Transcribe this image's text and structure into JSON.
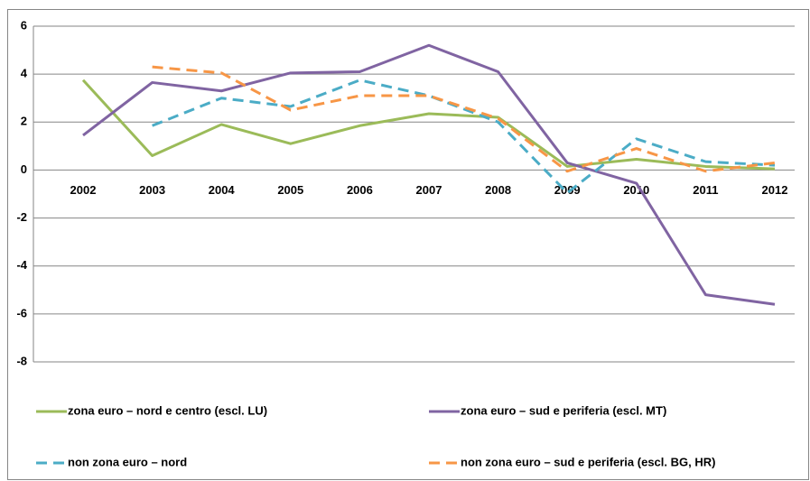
{
  "chart_data": {
    "type": "line",
    "categories": [
      "2002",
      "2003",
      "2004",
      "2005",
      "2006",
      "2007",
      "2008",
      "2009",
      "2010",
      "2011",
      "2012"
    ],
    "series": [
      {
        "name": "zona euro – nord e centro (escl. LU)",
        "color": "#9bbb59",
        "dashed": false,
        "values": [
          3.75,
          0.6,
          1.9,
          1.1,
          1.85,
          2.35,
          2.2,
          0.15,
          0.45,
          0.15,
          0.05
        ]
      },
      {
        "name": "zona euro – sud e periferia (escl. MT)",
        "color": "#8064a2",
        "dashed": false,
        "values": [
          1.45,
          3.65,
          3.3,
          4.05,
          4.1,
          5.2,
          4.1,
          0.3,
          -0.55,
          -5.2,
          -5.6
        ]
      },
      {
        "name": "non zona euro – nord",
        "color": "#4bacc6",
        "dashed": true,
        "values": [
          null,
          1.85,
          3.0,
          2.65,
          3.75,
          3.1,
          2.0,
          -0.95,
          1.3,
          0.35,
          0.2
        ]
      },
      {
        "name": "non zona euro – sud e periferia (escl. BG, HR)",
        "color": "#f79646",
        "dashed": true,
        "values": [
          null,
          4.3,
          4.05,
          2.5,
          3.1,
          3.1,
          2.15,
          -0.05,
          0.9,
          -0.05,
          0.3
        ]
      }
    ],
    "ylim": [
      -8,
      6
    ],
    "yticks": [
      -8,
      -6,
      -4,
      -2,
      0,
      2,
      4,
      6
    ],
    "grid": true,
    "legend": "bottom"
  }
}
